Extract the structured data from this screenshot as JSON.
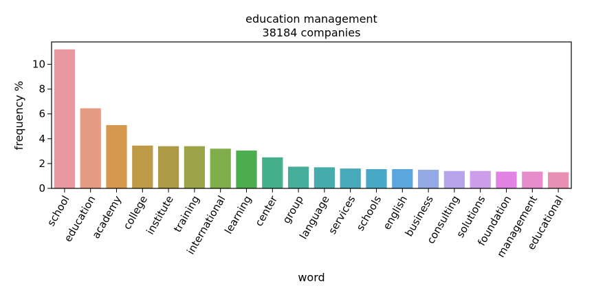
{
  "chart_data": {
    "type": "bar",
    "title": "education management",
    "subtitle": "38184 companies",
    "xlabel": "word",
    "ylabel": "frequency %",
    "ylim": [
      0,
      11.8
    ],
    "yticks": [
      0,
      2,
      4,
      6,
      8,
      10
    ],
    "grid": false,
    "categories": [
      "school",
      "education",
      "academy",
      "college",
      "institute",
      "training",
      "international",
      "learning",
      "center",
      "group",
      "language",
      "services",
      "schools",
      "english",
      "business",
      "consulting",
      "solutions",
      "foundation",
      "management",
      "educational"
    ],
    "values": [
      11.2,
      6.45,
      5.1,
      3.45,
      3.4,
      3.4,
      3.2,
      3.05,
      2.5,
      1.75,
      1.7,
      1.6,
      1.55,
      1.55,
      1.5,
      1.4,
      1.4,
      1.35,
      1.35,
      1.3
    ],
    "colors": [
      "#e8969f",
      "#e59a82",
      "#d6974e",
      "#bf9a46",
      "#ad9a45",
      "#9ca44a",
      "#7fae4b",
      "#4cad4f",
      "#45b08b",
      "#46ae9b",
      "#46abab",
      "#48a9b8",
      "#49a8c6",
      "#5aa6dd",
      "#94aae6",
      "#b7a5ec",
      "#cc9eea",
      "#e184e3",
      "#e78dcb",
      "#e790b4"
    ]
  }
}
